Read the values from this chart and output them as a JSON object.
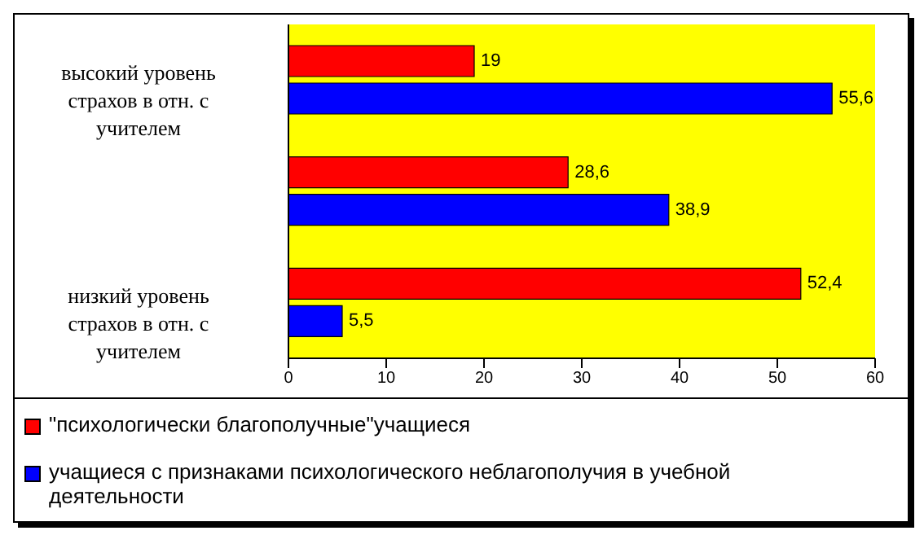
{
  "chart_data": {
    "type": "bar",
    "orientation": "horizontal",
    "categories": [
      "высокий уровень страхов в отн. с учителем",
      null,
      "низкий уровень страхов в отн. с учителем"
    ],
    "series": [
      {
        "name": "\"психологически благополучные\"учащиеся",
        "color": "#ff0000",
        "values": [
          19,
          28.6,
          52.4
        ],
        "value_labels": [
          "19",
          "28,6",
          "52,4"
        ]
      },
      {
        "name": "учащиеся с признаками психологического неблагополучия в учебной деятельности",
        "color": "#0000ff",
        "values": [
          55.6,
          38.9,
          5.5
        ],
        "value_labels": [
          "55,6",
          "38,9",
          "5,5"
        ]
      }
    ],
    "xlim": [
      0,
      60
    ],
    "xticks": [
      0,
      10,
      20,
      30,
      40,
      50,
      60
    ],
    "grid": false,
    "legend": "bottom"
  }
}
